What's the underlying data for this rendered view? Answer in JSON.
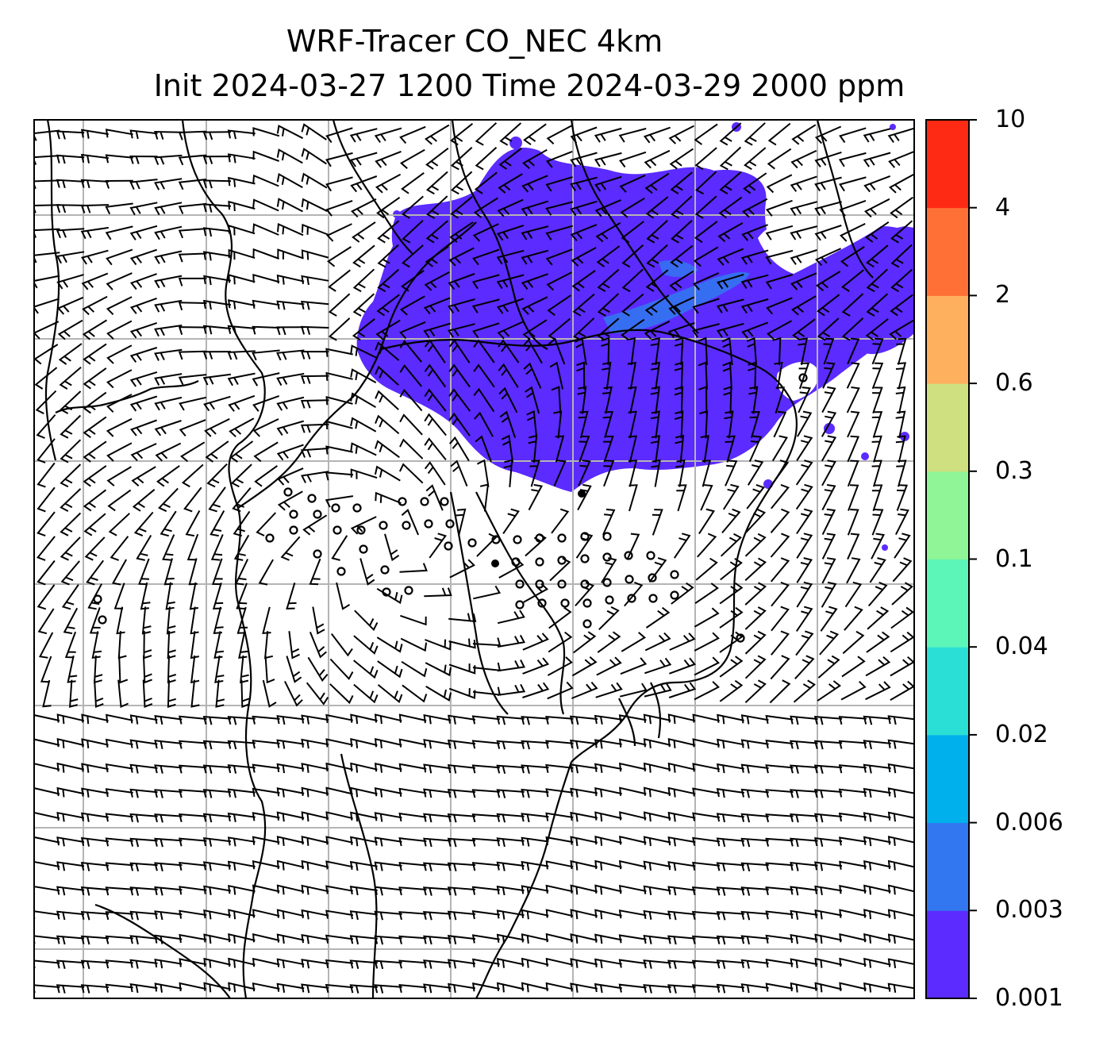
{
  "title": {
    "line1": "WRF-Tracer CO_NEC 4km",
    "line2": "Init 2024-03-27 1200 Time 2024-03-29 2000 ppm"
  },
  "colorbar": {
    "levels": [
      "0.001",
      "0.003",
      "0.006",
      "0.02",
      "0.04",
      "0.1",
      "0.3",
      "0.6",
      "2",
      "4",
      "10"
    ],
    "colors": [
      "#5b2bff",
      "#3276f0",
      "#00b0ec",
      "#2adfd5",
      "#5cf6b8",
      "#8ff596",
      "#cfe080",
      "#ffb05f",
      "#ff7037",
      "#ff2a14"
    ]
  },
  "colors": {
    "tracer_low": "#5b2bff",
    "tracer_mid": "#3276f0",
    "gridline": "#b4b4b4",
    "barb": "#000000"
  },
  "map": {
    "field": "CO_NEC tracer concentration",
    "overlay": "wind barbs",
    "grid": true
  }
}
